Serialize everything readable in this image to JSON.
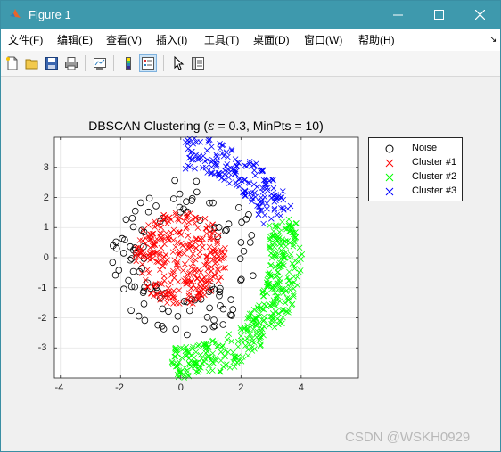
{
  "window": {
    "title": "Figure 1",
    "colors": {
      "titlebar": "#3e99ad"
    }
  },
  "menu": {
    "items": [
      {
        "label": "文件(F)"
      },
      {
        "label": "编辑(E)"
      },
      {
        "label": "查看(V)"
      },
      {
        "label": "插入(I)"
      },
      {
        "label": "工具(T)"
      },
      {
        "label": "桌面(D)"
      },
      {
        "label": "窗口(W)"
      },
      {
        "label": "帮助(H)"
      }
    ],
    "overflow_icon": "arrow-down-right-icon"
  },
  "toolbar": {
    "icons": [
      "new-figure-icon",
      "open-file-icon",
      "save-icon",
      "print-icon",
      "link-plot-icon",
      "colorbar-icon",
      "legend-icon",
      "pointer-icon",
      "property-inspector-icon"
    ]
  },
  "chart_data": {
    "type": "scatter",
    "title_prefix": "DBSCAN Clustering (",
    "title_epsilon": "ε",
    "title_suffix": " = 0.3, MinPts = 10)",
    "xlim": [
      -4.2,
      5.9
    ],
    "ylim": [
      -4.0,
      4.0
    ],
    "xticks": [
      -4,
      -2,
      0,
      2,
      4
    ],
    "yticks": [
      -3,
      -2,
      -1,
      0,
      1,
      2,
      3
    ],
    "grid": true,
    "legend_position": "outside-top-right",
    "series": [
      {
        "name": "Noise",
        "marker": "o",
        "color": "#000000",
        "count": 120
      },
      {
        "name": "Cluster #1",
        "marker": "x",
        "color": "#ff0000",
        "count": 320
      },
      {
        "name": "Cluster #2",
        "marker": "x",
        "color": "#00ff00",
        "count": 400
      },
      {
        "name": "Cluster #3",
        "marker": "x",
        "color": "#0000ff",
        "count": 180
      }
    ],
    "generation": {
      "cluster1": {
        "center": [
          0.0,
          0.0
        ],
        "radius_max": 1.6
      },
      "cluster2": {
        "arc_radius": 3.5,
        "arc_start_deg": -95,
        "arc_end_deg": 20,
        "band_width": 0.55
      },
      "cluster3": {
        "arc_radius": 3.5,
        "arc_start_deg": 22,
        "arc_end_deg": 88,
        "band_width": 0.55
      },
      "noise": {
        "center": [
          0.1,
          0.0
        ],
        "radius_min": 1.3,
        "radius_max": 2.6
      }
    }
  },
  "watermark": "CSDN @WSKH0929"
}
